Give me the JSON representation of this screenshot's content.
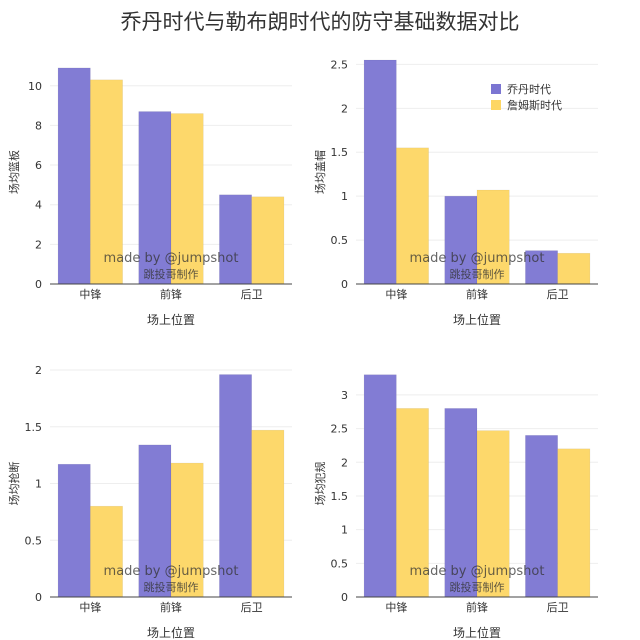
{
  "title": "乔丹时代与勒布朗时代的防守基础数据对比",
  "colors": {
    "series_a": "#7B75D2",
    "series_b": "#FDD663",
    "grid": "#EEEEEE",
    "axis": "#444444"
  },
  "watermark": {
    "line1": "made by @jumpshot",
    "line2": "跳投哥制作"
  },
  "chart_data": [
    {
      "type": "bar",
      "categories": [
        "中锋",
        "前锋",
        "后卫"
      ],
      "series": [
        {
          "name": "乔丹时代",
          "values": [
            10.9,
            8.7,
            4.5
          ]
        },
        {
          "name": "詹姆斯时代",
          "values": [
            10.3,
            8.6,
            4.4
          ]
        }
      ],
      "xlabel": "场上位置",
      "ylabel": "场均篮板",
      "ylim": [
        0,
        11.3
      ],
      "yticks": [
        0,
        2,
        4,
        6,
        8,
        10
      ],
      "ytick_labels": [
        "0",
        "2",
        "4",
        "6",
        "8",
        "10"
      ],
      "grid": true,
      "legend": false
    },
    {
      "type": "bar",
      "categories": [
        "中锋",
        "前锋",
        "后卫"
      ],
      "series": [
        {
          "name": "乔丹时代",
          "values": [
            2.55,
            1.0,
            0.38
          ]
        },
        {
          "name": "詹姆斯时代",
          "values": [
            1.55,
            1.07,
            0.35
          ]
        }
      ],
      "xlabel": "场上位置",
      "ylabel": "场均盖帽",
      "ylim": [
        0,
        2.55
      ],
      "yticks": [
        0,
        0.5,
        1,
        1.5,
        2,
        2.5
      ],
      "ytick_labels": [
        "0",
        "0.5",
        "1",
        "1.5",
        "2",
        "2.5"
      ],
      "grid": true,
      "legend": true,
      "legend_position": "top-right"
    },
    {
      "type": "bar",
      "categories": [
        "中锋",
        "前锋",
        "后卫"
      ],
      "series": [
        {
          "name": "乔丹时代",
          "values": [
            1.17,
            1.34,
            1.96
          ]
        },
        {
          "name": "詹姆斯时代",
          "values": [
            0.8,
            1.18,
            1.47
          ]
        }
      ],
      "xlabel": "场上位置",
      "ylabel": "场均抢断",
      "ylim": [
        0,
        2.0
      ],
      "yticks": [
        0,
        0.5,
        1,
        1.5,
        2
      ],
      "ytick_labels": [
        "0",
        "0.5",
        "1",
        "1.5",
        "2"
      ],
      "grid": true,
      "legend": false
    },
    {
      "type": "bar",
      "categories": [
        "中锋",
        "前锋",
        "后卫"
      ],
      "series": [
        {
          "name": "乔丹时代",
          "values": [
            3.3,
            2.8,
            2.4
          ]
        },
        {
          "name": "詹姆斯时代",
          "values": [
            2.8,
            2.47,
            2.2
          ]
        }
      ],
      "xlabel": "场上位置",
      "ylabel": "场均犯规",
      "ylim": [
        0,
        3.37
      ],
      "yticks": [
        0,
        0.5,
        1,
        1.5,
        2,
        2.5,
        3
      ],
      "ytick_labels": [
        "0",
        "0.5",
        "1",
        "1.5",
        "2",
        "2.5",
        "3"
      ],
      "grid": true,
      "legend": false
    }
  ]
}
